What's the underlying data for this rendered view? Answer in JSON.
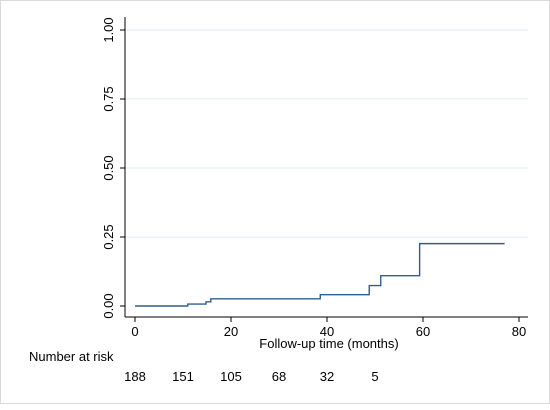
{
  "chart_data": {
    "type": "line",
    "step": true,
    "title": "",
    "xlabel": "Follow-up time (months)",
    "ylabel": "",
    "xlim": [
      0,
      80
    ],
    "ylim": [
      0,
      1
    ],
    "x_ticks": [
      0,
      20,
      40,
      60,
      80
    ],
    "x_tick_labels": [
      "0",
      "20",
      "40",
      "60",
      "80"
    ],
    "y_ticks": [
      0,
      0.25,
      0.5,
      0.75,
      1
    ],
    "y_tick_labels": [
      "0.00",
      "0.25",
      "0.50",
      "0.75",
      "1.00"
    ],
    "grid": "horizontal",
    "legend": "none",
    "line_color": "#2f5f8a",
    "grid_color": "#d6ecef",
    "series": [
      {
        "x": [
          0,
          11,
          14.8,
          15.8,
          38.6,
          48.8,
          51.2,
          59.3,
          77
        ],
        "y": [
          0,
          0.007,
          0.015,
          0.026,
          0.041,
          0.074,
          0.11,
          0.226,
          0.226
        ]
      }
    ]
  },
  "risk_table": {
    "title": "Number at risk",
    "x": [
      0,
      10,
      20,
      30,
      40,
      50
    ],
    "values": [
      "188",
      "151",
      "105",
      "68",
      "32",
      "5"
    ]
  }
}
